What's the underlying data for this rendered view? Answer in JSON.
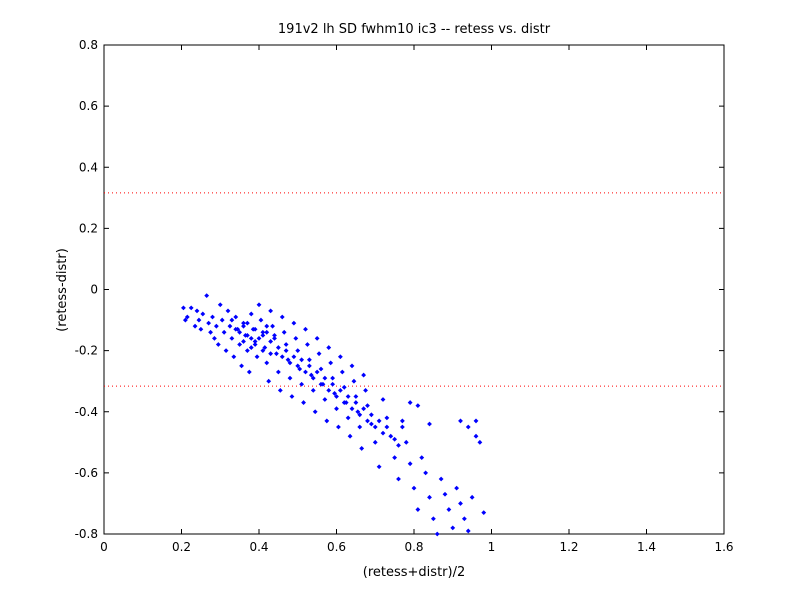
{
  "chart_data": {
    "type": "scatter",
    "title": "191v2 lh SD fwhm10 ic3 -- retess vs. distr",
    "xlabel": "(retess+distr)/2",
    "ylabel": "(retess-distr)",
    "xlim": [
      0,
      1.6
    ],
    "ylim": [
      -0.8,
      0.8
    ],
    "x_ticks": [
      "0",
      "0.2",
      "0.4",
      "0.6",
      "0.8",
      "1",
      "1.2",
      "1.4",
      "1.6"
    ],
    "y_ticks": [
      "-0.8",
      "-0.6",
      "-0.4",
      "-0.2",
      "0",
      "0.2",
      "0.4",
      "0.6",
      "0.8"
    ],
    "x_tick_values": [
      0,
      0.2,
      0.4,
      0.6,
      0.8,
      1.0,
      1.2,
      1.4,
      1.6
    ],
    "y_tick_values": [
      -0.8,
      -0.6,
      -0.4,
      -0.2,
      0,
      0.2,
      0.4,
      0.6,
      0.8
    ],
    "reference_lines": [
      0.316,
      -0.316
    ],
    "grid": false,
    "marker_color": "#0000ff",
    "reference_line_color": "#ff0000",
    "series": [
      {
        "points": [
          [
            0.205,
            -0.06
          ],
          [
            0.215,
            -0.09
          ],
          [
            0.21,
            -0.1
          ],
          [
            0.225,
            -0.06
          ],
          [
            0.235,
            -0.12
          ],
          [
            0.24,
            -0.07
          ],
          [
            0.245,
            -0.1
          ],
          [
            0.25,
            -0.13
          ],
          [
            0.255,
            -0.08
          ],
          [
            0.265,
            -0.02
          ],
          [
            0.27,
            -0.11
          ],
          [
            0.275,
            -0.14
          ],
          [
            0.28,
            -0.09
          ],
          [
            0.285,
            -0.16
          ],
          [
            0.29,
            -0.12
          ],
          [
            0.295,
            -0.18
          ],
          [
            0.3,
            -0.05
          ],
          [
            0.305,
            -0.1
          ],
          [
            0.31,
            -0.14
          ],
          [
            0.315,
            -0.2
          ],
          [
            0.32,
            -0.07
          ],
          [
            0.325,
            -0.12
          ],
          [
            0.33,
            -0.16
          ],
          [
            0.335,
            -0.22
          ],
          [
            0.34,
            -0.09
          ],
          [
            0.345,
            -0.13
          ],
          [
            0.35,
            -0.18
          ],
          [
            0.355,
            -0.25
          ],
          [
            0.36,
            -0.11
          ],
          [
            0.365,
            -0.15
          ],
          [
            0.37,
            -0.2
          ],
          [
            0.375,
            -0.27
          ],
          [
            0.38,
            -0.08
          ],
          [
            0.385,
            -0.13
          ],
          [
            0.39,
            -0.17
          ],
          [
            0.395,
            -0.22
          ],
          [
            0.4,
            -0.05
          ],
          [
            0.405,
            -0.1
          ],
          [
            0.41,
            -0.14
          ],
          [
            0.415,
            -0.19
          ],
          [
            0.42,
            -0.24
          ],
          [
            0.425,
            -0.3
          ],
          [
            0.43,
            -0.07
          ],
          [
            0.435,
            -0.12
          ],
          [
            0.44,
            -0.16
          ],
          [
            0.445,
            -0.21
          ],
          [
            0.45,
            -0.27
          ],
          [
            0.455,
            -0.33
          ],
          [
            0.46,
            -0.09
          ],
          [
            0.465,
            -0.14
          ],
          [
            0.47,
            -0.18
          ],
          [
            0.475,
            -0.23
          ],
          [
            0.48,
            -0.29
          ],
          [
            0.485,
            -0.35
          ],
          [
            0.49,
            -0.11
          ],
          [
            0.495,
            -0.16
          ],
          [
            0.5,
            -0.2
          ],
          [
            0.505,
            -0.26
          ],
          [
            0.51,
            -0.31
          ],
          [
            0.515,
            -0.37
          ],
          [
            0.52,
            -0.13
          ],
          [
            0.525,
            -0.18
          ],
          [
            0.53,
            -0.23
          ],
          [
            0.535,
            -0.28
          ],
          [
            0.54,
            -0.33
          ],
          [
            0.545,
            -0.4
          ],
          [
            0.55,
            -0.16
          ],
          [
            0.555,
            -0.21
          ],
          [
            0.56,
            -0.26
          ],
          [
            0.565,
            -0.31
          ],
          [
            0.57,
            -0.36
          ],
          [
            0.575,
            -0.43
          ],
          [
            0.58,
            -0.19
          ],
          [
            0.585,
            -0.24
          ],
          [
            0.59,
            -0.29
          ],
          [
            0.595,
            -0.34
          ],
          [
            0.6,
            -0.39
          ],
          [
            0.605,
            -0.45
          ],
          [
            0.61,
            -0.22
          ],
          [
            0.615,
            -0.27
          ],
          [
            0.62,
            -0.32
          ],
          [
            0.625,
            -0.37
          ],
          [
            0.63,
            -0.42
          ],
          [
            0.635,
            -0.48
          ],
          [
            0.64,
            -0.25
          ],
          [
            0.645,
            -0.3
          ],
          [
            0.65,
            -0.35
          ],
          [
            0.655,
            -0.4
          ],
          [
            0.66,
            -0.45
          ],
          [
            0.665,
            -0.52
          ],
          [
            0.67,
            -0.28
          ],
          [
            0.675,
            -0.33
          ],
          [
            0.68,
            -0.38
          ],
          [
            0.69,
            -0.44
          ],
          [
            0.7,
            -0.5
          ],
          [
            0.71,
            -0.58
          ],
          [
            0.72,
            -0.36
          ],
          [
            0.73,
            -0.42
          ],
          [
            0.74,
            -0.48
          ],
          [
            0.75,
            -0.55
          ],
          [
            0.76,
            -0.62
          ],
          [
            0.77,
            -0.45
          ],
          [
            0.78,
            -0.5
          ],
          [
            0.79,
            -0.57
          ],
          [
            0.8,
            -0.65
          ],
          [
            0.81,
            -0.72
          ],
          [
            0.82,
            -0.55
          ],
          [
            0.83,
            -0.6
          ],
          [
            0.84,
            -0.68
          ],
          [
            0.85,
            -0.75
          ],
          [
            0.86,
            -0.8
          ],
          [
            0.87,
            -0.62
          ],
          [
            0.88,
            -0.67
          ],
          [
            0.89,
            -0.72
          ],
          [
            0.9,
            -0.78
          ],
          [
            0.91,
            -0.65
          ],
          [
            0.92,
            -0.7
          ],
          [
            0.93,
            -0.75
          ],
          [
            0.94,
            -0.79
          ],
          [
            0.95,
            -0.68
          ],
          [
            0.96,
            -0.48
          ],
          [
            0.97,
            -0.5
          ],
          [
            0.98,
            -0.73
          ],
          [
            0.96,
            -0.43
          ],
          [
            0.94,
            -0.45
          ],
          [
            0.92,
            -0.43
          ],
          [
            0.81,
            -0.38
          ],
          [
            0.84,
            -0.44
          ],
          [
            0.79,
            -0.37
          ],
          [
            0.77,
            -0.43
          ],
          [
            0.35,
            -0.14
          ],
          [
            0.36,
            -0.12
          ],
          [
            0.37,
            -0.15
          ],
          [
            0.38,
            -0.16
          ],
          [
            0.39,
            -0.13
          ],
          [
            0.4,
            -0.16
          ],
          [
            0.41,
            -0.15
          ],
          [
            0.42,
            -0.14
          ],
          [
            0.43,
            -0.17
          ],
          [
            0.44,
            -0.15
          ],
          [
            0.33,
            -0.1
          ],
          [
            0.34,
            -0.13
          ],
          [
            0.36,
            -0.17
          ],
          [
            0.37,
            -0.11
          ],
          [
            0.38,
            -0.19
          ],
          [
            0.39,
            -0.18
          ],
          [
            0.41,
            -0.2
          ],
          [
            0.42,
            -0.12
          ],
          [
            0.43,
            -0.21
          ],
          [
            0.45,
            -0.19
          ],
          [
            0.46,
            -0.22
          ],
          [
            0.47,
            -0.2
          ],
          [
            0.48,
            -0.24
          ],
          [
            0.49,
            -0.22
          ],
          [
            0.5,
            -0.25
          ],
          [
            0.51,
            -0.23
          ],
          [
            0.52,
            -0.27
          ],
          [
            0.53,
            -0.25
          ],
          [
            0.54,
            -0.29
          ],
          [
            0.55,
            -0.27
          ],
          [
            0.56,
            -0.31
          ],
          [
            0.57,
            -0.29
          ],
          [
            0.58,
            -0.33
          ],
          [
            0.59,
            -0.31
          ],
          [
            0.6,
            -0.35
          ],
          [
            0.61,
            -0.33
          ],
          [
            0.62,
            -0.37
          ],
          [
            0.63,
            -0.35
          ],
          [
            0.64,
            -0.39
          ],
          [
            0.65,
            -0.37
          ],
          [
            0.66,
            -0.41
          ],
          [
            0.67,
            -0.39
          ],
          [
            0.68,
            -0.43
          ],
          [
            0.69,
            -0.41
          ],
          [
            0.7,
            -0.45
          ],
          [
            0.71,
            -0.43
          ],
          [
            0.72,
            -0.47
          ],
          [
            0.73,
            -0.45
          ],
          [
            0.75,
            -0.49
          ],
          [
            0.76,
            -0.51
          ]
        ]
      }
    ]
  }
}
